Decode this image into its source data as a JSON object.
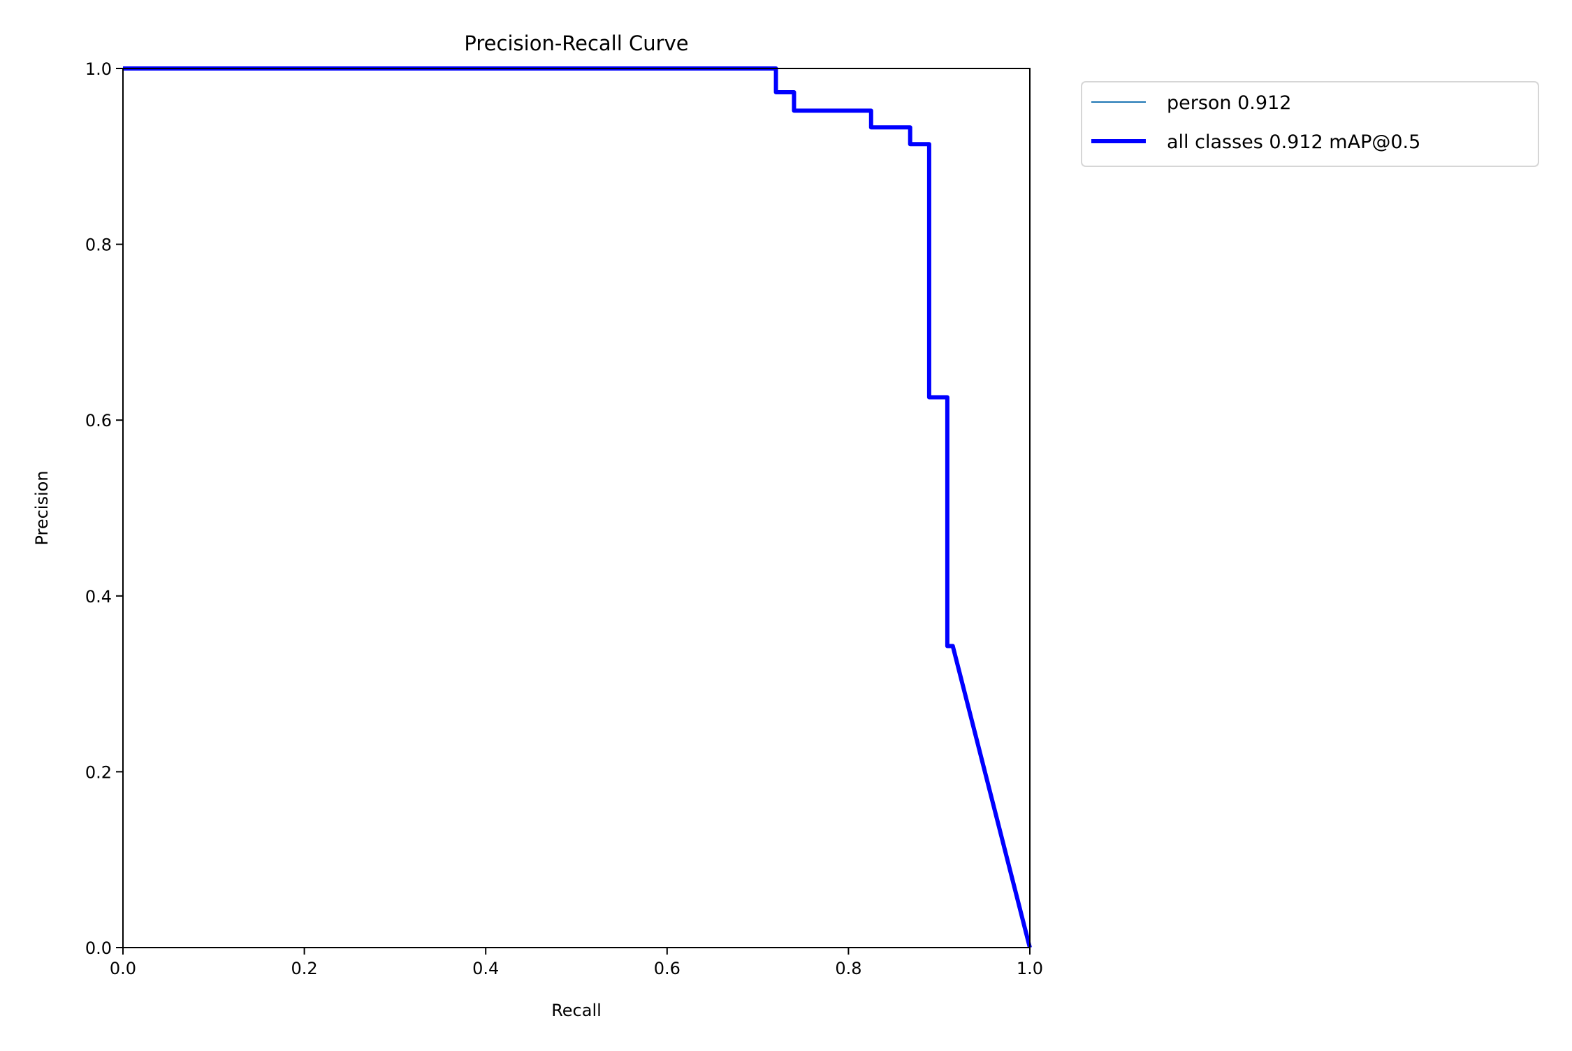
{
  "chart_data": {
    "type": "line",
    "title": "Precision-Recall Curve",
    "xlabel": "Recall",
    "ylabel": "Precision",
    "xlim": [
      0,
      1
    ],
    "ylim": [
      0,
      1
    ],
    "grid": false,
    "legend_placement": "outside-top-right",
    "xticks": [
      "0.0",
      "0.2",
      "0.4",
      "0.6",
      "0.8",
      "1.0"
    ],
    "yticks": [
      "0.0",
      "0.2",
      "0.4",
      "0.6",
      "0.8",
      "1.0"
    ],
    "series": [
      {
        "name": "person 0.912",
        "color": "#1f77b4",
        "x": [
          0,
          0.72,
          0.72,
          0.74,
          0.74,
          0.825,
          0.825,
          0.868,
          0.868,
          0.889,
          0.889,
          0.909,
          0.909,
          0.915,
          1.0
        ],
        "y": [
          1.0,
          1.0,
          0.973,
          0.973,
          0.952,
          0.952,
          0.933,
          0.933,
          0.914,
          0.914,
          0.626,
          0.626,
          0.343,
          0.343,
          0.0
        ]
      },
      {
        "name": "all classes 0.912 mAP@0.5",
        "color": "#0000ff",
        "x": [
          0,
          0.72,
          0.72,
          0.74,
          0.74,
          0.825,
          0.825,
          0.868,
          0.868,
          0.889,
          0.889,
          0.909,
          0.909,
          0.915,
          1.0
        ],
        "y": [
          1.0,
          1.0,
          0.973,
          0.973,
          0.952,
          0.952,
          0.933,
          0.933,
          0.914,
          0.914,
          0.626,
          0.626,
          0.343,
          0.343,
          0.0
        ]
      }
    ]
  }
}
